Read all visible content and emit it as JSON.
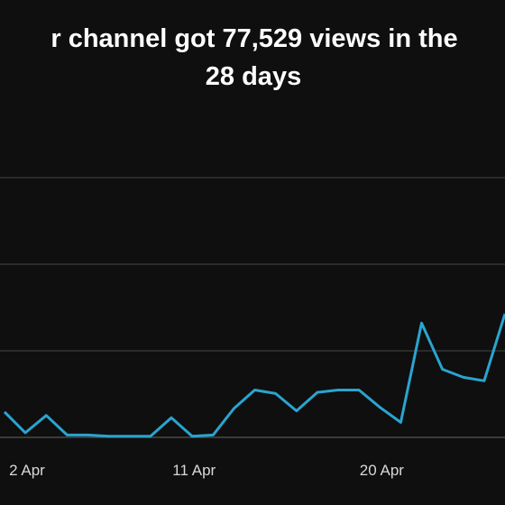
{
  "chart_data": {
    "type": "line",
    "title_lines": [
      "r channel got 77,529 views in the",
      "28 days"
    ],
    "categories": [
      null,
      "2 Apr",
      null,
      null,
      null,
      null,
      null,
      null,
      null,
      null,
      "11 Apr",
      null,
      null,
      null,
      null,
      null,
      null,
      null,
      null,
      "20 Apr",
      null,
      null,
      null,
      null,
      null
    ],
    "series": [
      {
        "color": "#2aa4d0",
        "values": [
          2200,
          400,
          1900,
          200,
          200,
          100,
          100,
          100,
          1700,
          100,
          200,
          2500,
          4100,
          3800,
          2300,
          3900,
          4100,
          4100,
          2600,
          1300,
          9900,
          5900,
          5200,
          4900,
          10700
        ]
      }
    ],
    "ylim": [
      0,
      22500
    ],
    "ygrid": [
      0,
      7500,
      15000,
      22500
    ]
  }
}
